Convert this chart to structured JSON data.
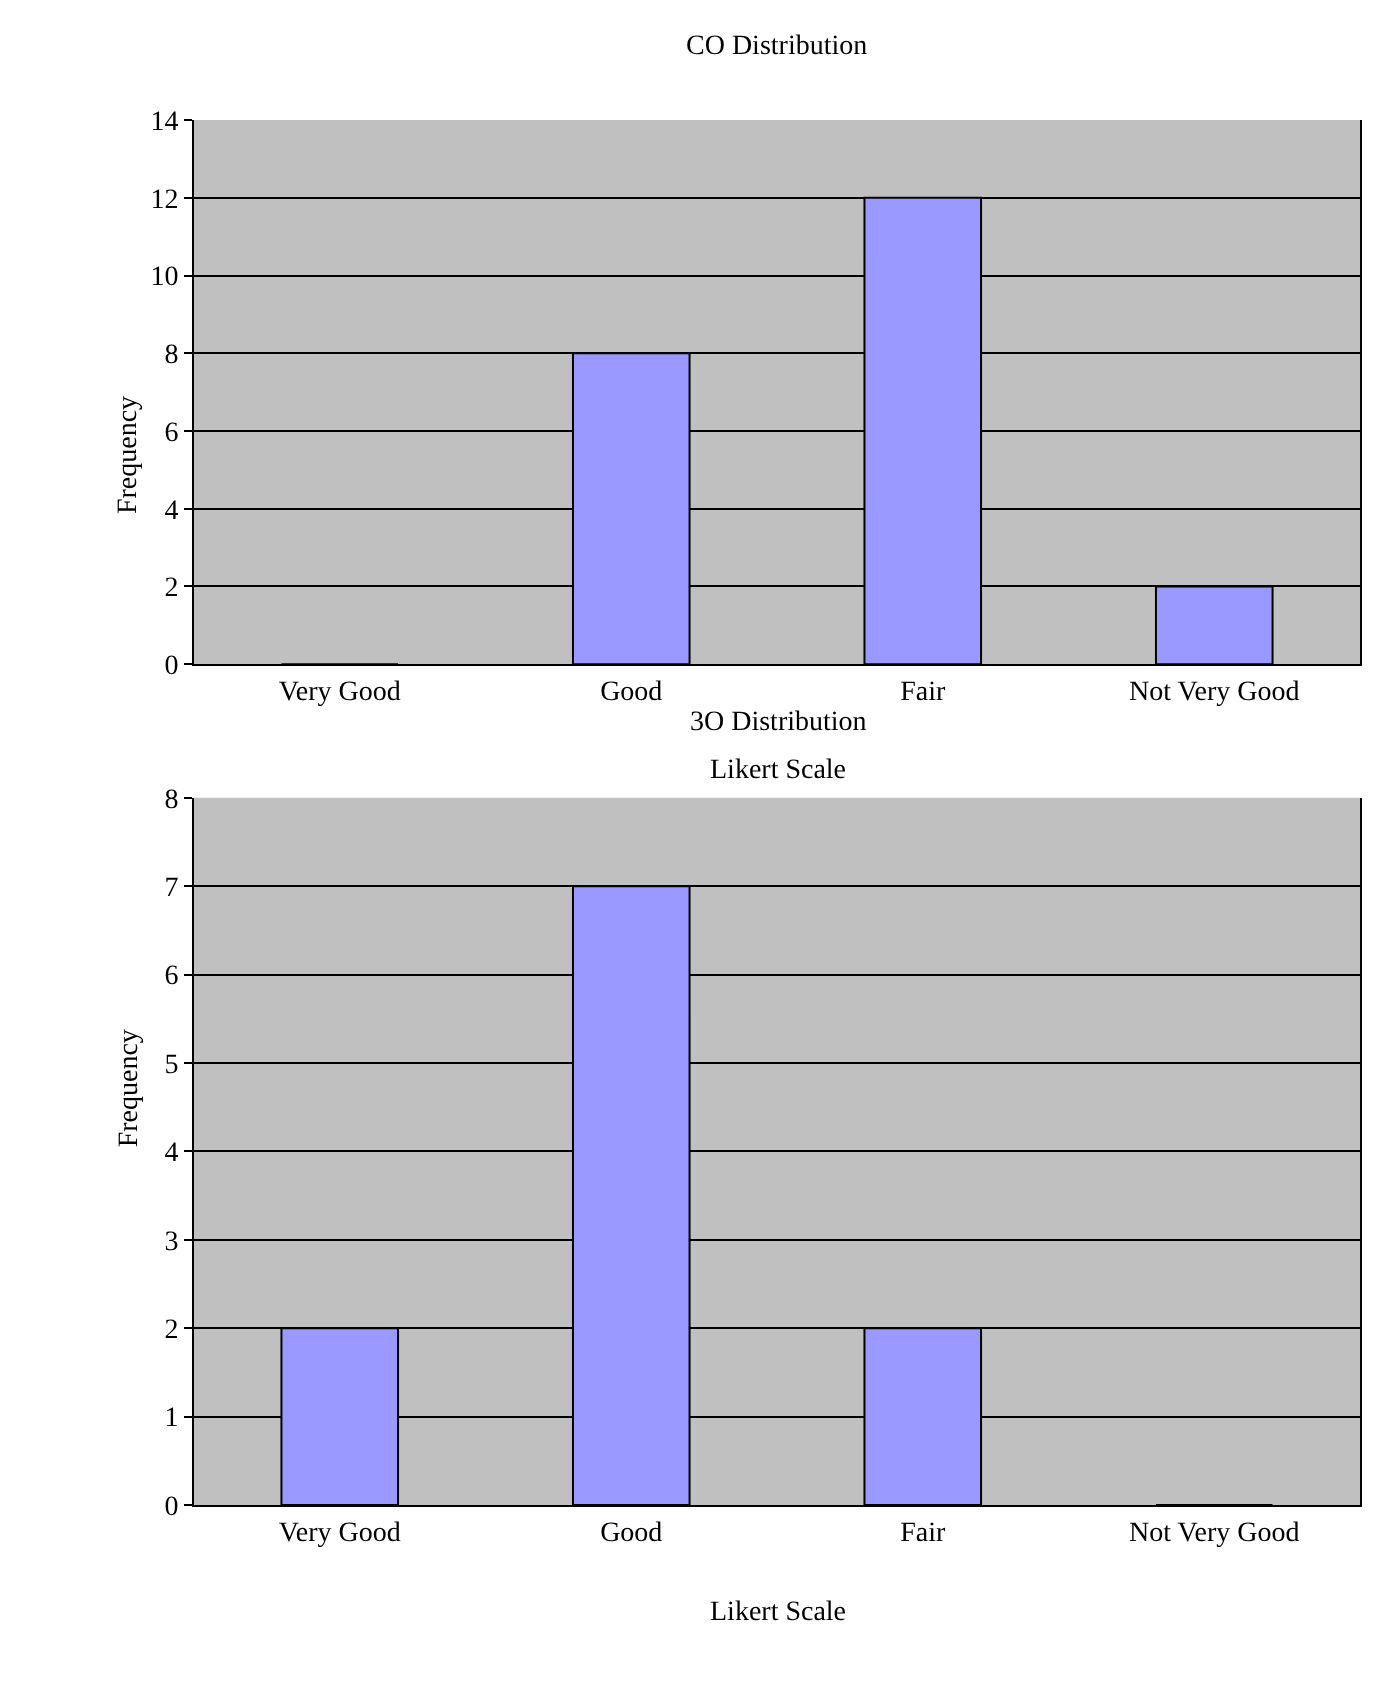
{
  "chart_data": [
    {
      "type": "bar",
      "title": "CO Distribution",
      "xlabel": "Likert Scale",
      "ylabel": "Frequency",
      "categories": [
        "Very Good",
        "Good",
        "Fair",
        "Not Very Good"
      ],
      "values": [
        0,
        8,
        12,
        2
      ],
      "color": "#9999ff",
      "ylim": [
        0,
        14
      ],
      "yticks": [
        0,
        2,
        4,
        6,
        8,
        10,
        12,
        14
      ],
      "grid": "y",
      "legend": false
    },
    {
      "type": "bar",
      "title": "3O Distribution",
      "xlabel": "Likert Scale",
      "ylabel": "Frequency",
      "categories": [
        "Very Good",
        "Good",
        "Fair",
        "Not Very Good"
      ],
      "values": [
        2,
        7,
        2,
        0
      ],
      "color": "#9999ff",
      "ylim": [
        0,
        8
      ],
      "yticks": [
        0,
        1,
        2,
        3,
        4,
        5,
        6,
        7,
        8
      ],
      "grid": "y",
      "legend": false
    }
  ]
}
